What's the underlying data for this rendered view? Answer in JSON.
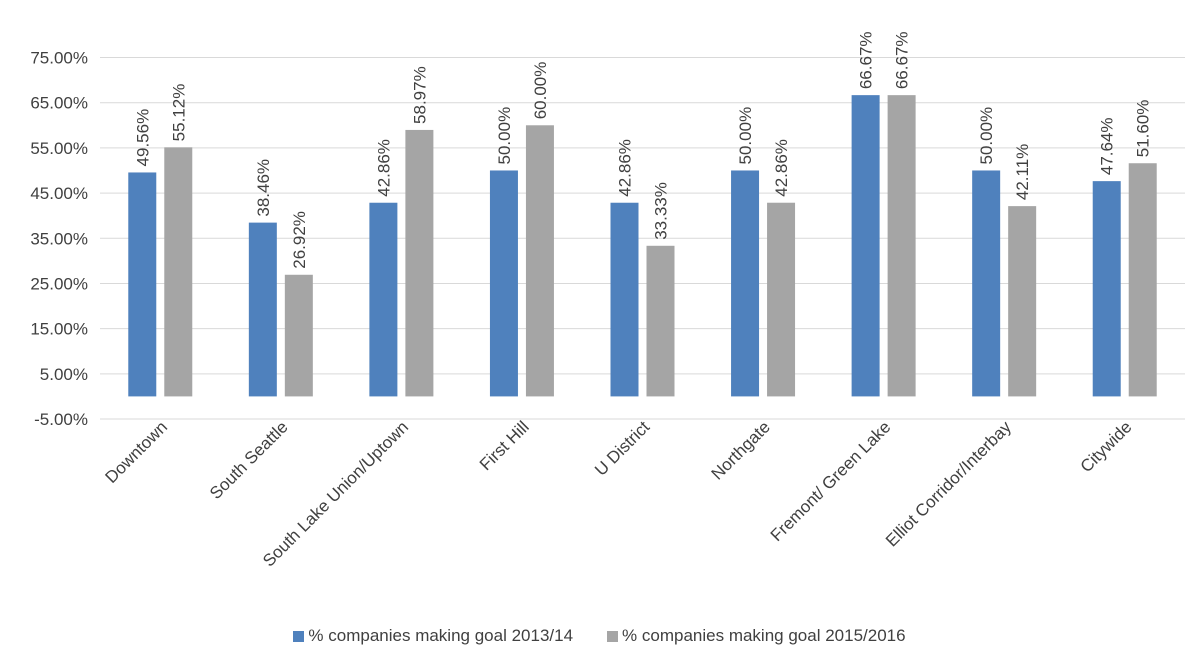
{
  "chart_data": {
    "type": "bar",
    "title": "",
    "xlabel": "",
    "ylabel": "",
    "categories": [
      "Downtown",
      "South Seattle",
      "South Lake Union/Uptown",
      "First Hill",
      "U District",
      "Northgate",
      "Fremont/ Green Lake",
      "Elliot Corridor/Interbay",
      "Citywide"
    ],
    "series": [
      {
        "name": "% companies making goal 2013/14",
        "color": "#4f81bd",
        "values": [
          49.56,
          38.46,
          42.86,
          50.0,
          42.86,
          50.0,
          66.67,
          50.0,
          47.64
        ],
        "labels": [
          "49.56%",
          "38.46%",
          "42.86%",
          "50.00%",
          "42.86%",
          "50.00%",
          "66.67%",
          "50.00%",
          "47.64%"
        ]
      },
      {
        "name": "% companies making goal 2015/2016",
        "color": "#a5a5a5",
        "values": [
          55.12,
          26.92,
          58.97,
          60.0,
          33.33,
          42.86,
          66.67,
          42.11,
          51.6
        ],
        "labels": [
          "55.12%",
          "26.92%",
          "58.97%",
          "60.00%",
          "33.33%",
          "42.86%",
          "66.67%",
          "42.11%",
          "51.60%"
        ]
      }
    ],
    "yticks": [
      -5,
      5,
      15,
      25,
      35,
      45,
      55,
      65,
      75
    ],
    "ytick_labels": [
      "-5.00%",
      "5.00%",
      "15.00%",
      "25.00%",
      "35.00%",
      "45.00%",
      "55.00%",
      "65.00%",
      "75.00%"
    ],
    "ylim": [
      -5,
      75
    ],
    "grid": true,
    "legend_position": "bottom"
  }
}
